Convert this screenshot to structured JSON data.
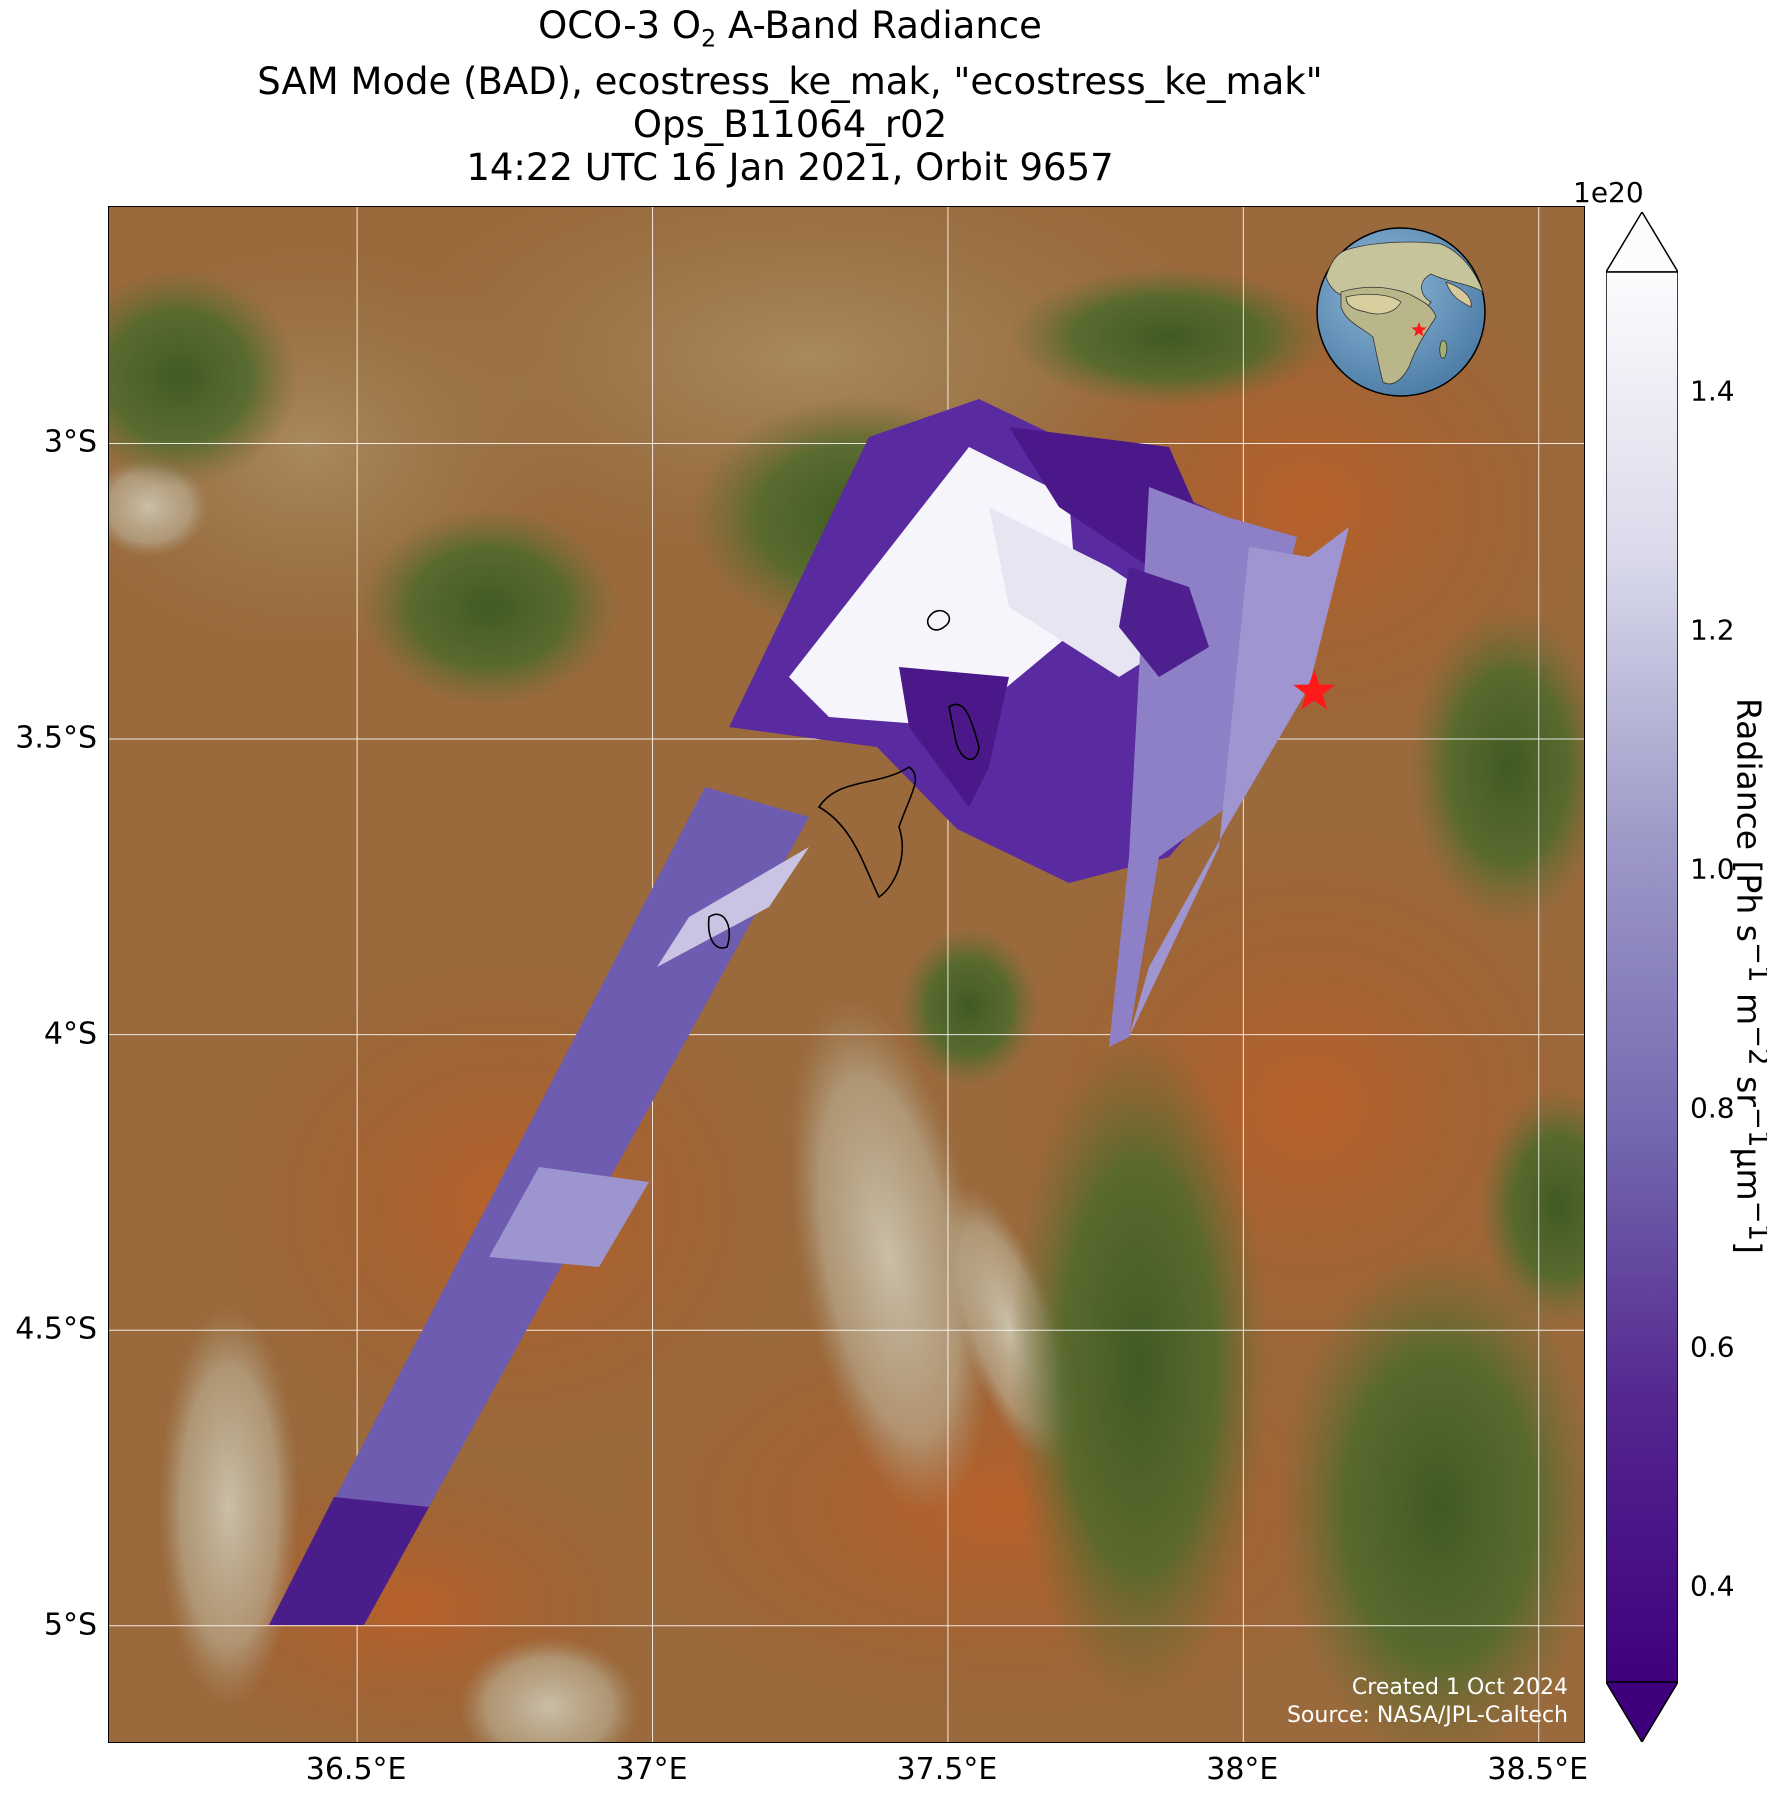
{
  "title": {
    "line1_prefix": "OCO-3 O",
    "line1_sub": "2",
    "line1_suffix": " A-Band Radiance",
    "line2": "SAM Mode (BAD), ecostress_ke_mak, \"ecostress_ke_mak\"",
    "line3": "Ops_B11064_r02",
    "line4": "14:22 UTC 16 Jan 2021, Orbit 9657"
  },
  "map": {
    "lon_range": [
      36.08,
      38.58
    ],
    "lat_range": [
      -5.2,
      -2.6
    ],
    "lat_ticks": [
      {
        "value": -3.0,
        "label": "3°S"
      },
      {
        "value": -3.5,
        "label": "3.5°S"
      },
      {
        "value": -4.0,
        "label": "4°S"
      },
      {
        "value": -4.5,
        "label": "4.5°S"
      },
      {
        "value": -5.0,
        "label": "5°S"
      }
    ],
    "lon_ticks": [
      {
        "value": 36.5,
        "label": "36.5°E"
      },
      {
        "value": 37.0,
        "label": "37°E"
      },
      {
        "value": 37.5,
        "label": "37.5°E"
      },
      {
        "value": 38.0,
        "label": "38°E"
      },
      {
        "value": 38.5,
        "label": "38.5°E"
      }
    ],
    "target": {
      "lon": 38.12,
      "lat": -3.42,
      "color": "#ff1a1a"
    },
    "colors": {
      "background": "#9a6233",
      "gridline": "#ffffff",
      "marker": "#ff1a1a"
    }
  },
  "inset_globe": {
    "center_lon": 37.0,
    "center_lat": 0.0,
    "marker_color": "#ff1a1a"
  },
  "credits": {
    "created": "Created 1 Oct 2024",
    "source": "Source: NASA/JPL-Caltech"
  },
  "colorbar": {
    "exponent_label": "1e20",
    "min": 0.32,
    "max": 1.5,
    "extend": "both",
    "colormap": "Purples_r",
    "ticks": [
      {
        "value": 0.4,
        "label": "0.4"
      },
      {
        "value": 0.6,
        "label": "0.6"
      },
      {
        "value": 0.8,
        "label": "0.8"
      },
      {
        "value": 1.0,
        "label": "1.0"
      },
      {
        "value": 1.2,
        "label": "1.2"
      },
      {
        "value": 1.4,
        "label": "1.4"
      }
    ],
    "label_prefix": "Radiance [Ph s",
    "label_sup1": "−1",
    "label_mid1": " m",
    "label_sup2": "−2",
    "label_mid2": " sr",
    "label_sup3": "−1",
    "label_mid3": "µm",
    "label_sup4": "−1",
    "label_suffix": "]"
  }
}
